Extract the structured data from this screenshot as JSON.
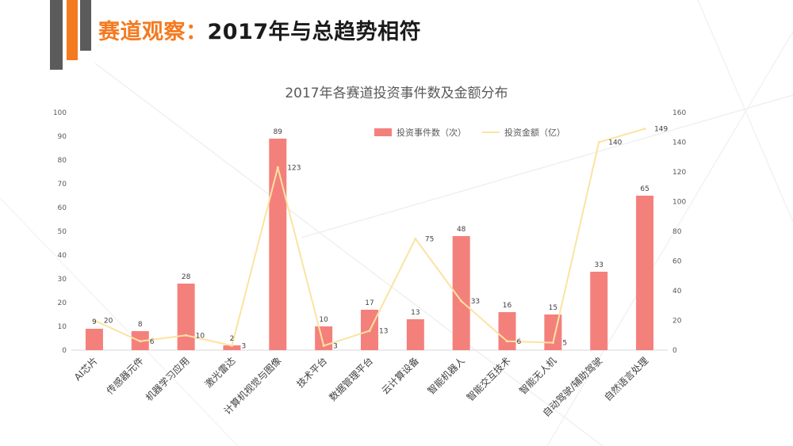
{
  "header": {
    "title_accent": "赛道观察：",
    "title_main": "2017年与总趋势相符"
  },
  "colors": {
    "accent": "#f47a20",
    "dark_bar": "#5b5b5b",
    "bar": "#f4807c",
    "line": "#fbe3a1"
  },
  "chart_data": {
    "type": "bar",
    "title": "2017年各赛道投资事件数及金额分布",
    "categories": [
      "AI芯片",
      "传感器元件",
      "机器学习应用",
      "激光雷达",
      "计算机视觉与图像",
      "技术平台",
      "数据管理平台",
      "云计算设备",
      "智能机器人",
      "智能交互技术",
      "智能无人机",
      "自动驾驶/辅助驾驶",
      "自然语言处理"
    ],
    "series": [
      {
        "name": "投资事件数（次）",
        "type": "bar",
        "axis": "left",
        "values": [
          9,
          8,
          28,
          2,
          89,
          10,
          17,
          13,
          48,
          16,
          15,
          33,
          65
        ]
      },
      {
        "name": "投资金额（亿）",
        "type": "line",
        "axis": "right",
        "values": [
          20,
          6,
          10,
          3,
          123,
          3,
          13,
          75,
          33,
          6,
          5,
          140,
          149
        ]
      }
    ],
    "y_left": {
      "lim": [
        0,
        100
      ],
      "ticks": [
        "0",
        "10",
        "20",
        "30",
        "40",
        "50",
        "60",
        "70",
        "80",
        "90",
        "100"
      ]
    },
    "y_right": {
      "lim": [
        0,
        160
      ],
      "ticks": [
        "0",
        "20",
        "40",
        "60",
        "80",
        "100",
        "120",
        "140",
        "160"
      ]
    },
    "legend_position": "top-right",
    "grid": false
  }
}
